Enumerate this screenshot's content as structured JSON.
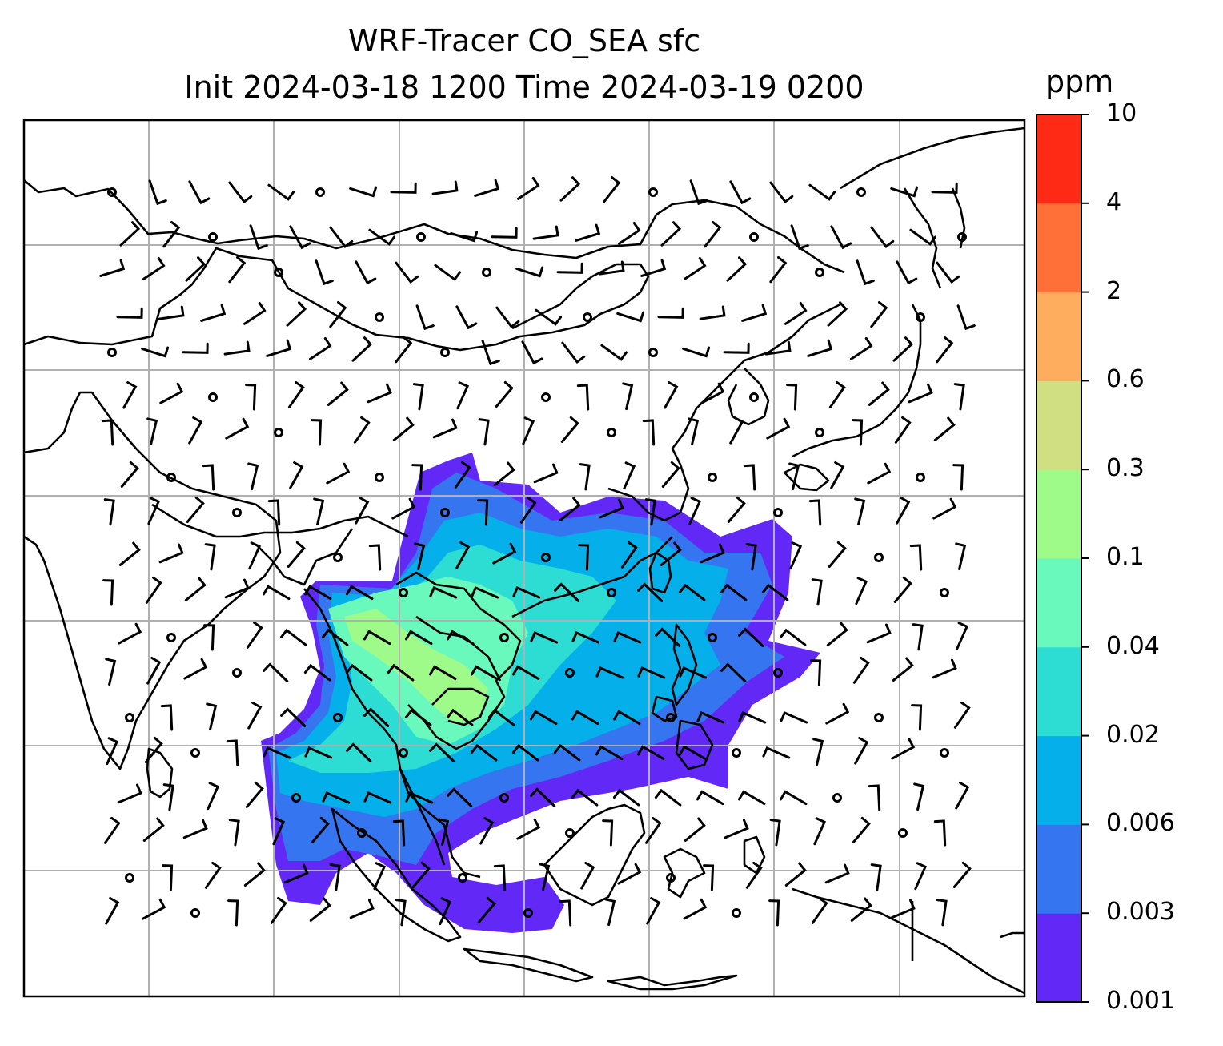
{
  "title": {
    "line1": "WRF-Tracer CO_SEA sfc",
    "line2": "Init 2024-03-18 1200 Time 2024-03-19 0200"
  },
  "colorbar": {
    "unit": "ppm",
    "levels": [
      "0.001",
      "0.003",
      "0.006",
      "0.02",
      "0.04",
      "0.1",
      "0.3",
      "0.6",
      "2",
      "4",
      "10"
    ],
    "colors": [
      "#6128f6",
      "#3575f0",
      "#05b0ea",
      "#2ddcd3",
      "#69f9bd",
      "#9efb8a",
      "#d0df82",
      "#feac5e",
      "#ff7038",
      "#ff2a16"
    ]
  },
  "map": {
    "background": "#ffffff",
    "coastline_color": "#000000",
    "gridline_color": "#b0b0b0"
  }
}
